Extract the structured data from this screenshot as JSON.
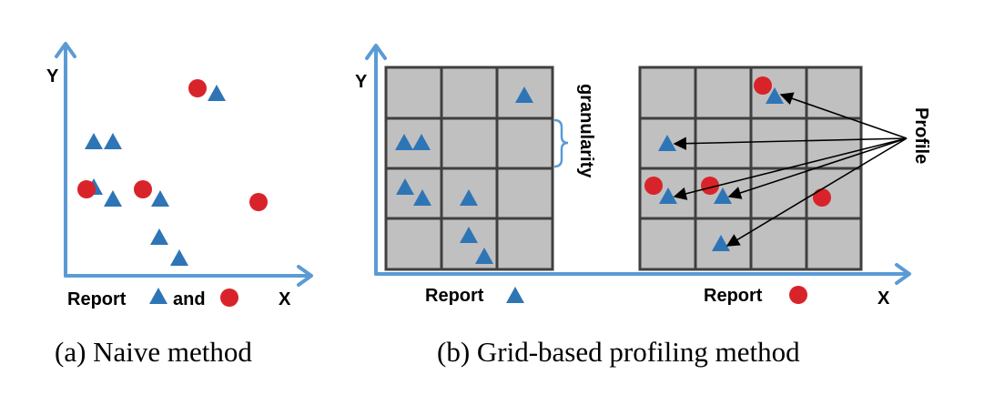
{
  "panel_a": {
    "y_label": "Y",
    "x_label": "X",
    "legend": {
      "report": "Report",
      "and": "and"
    },
    "caption": "(a) Naive method"
  },
  "panel_b": {
    "y_label": "Y",
    "x_label": "X",
    "left_grid": {
      "granularity_label": "granularity",
      "legend": "Report"
    },
    "right_grid": {
      "profile_label": "Profile",
      "legend": "Report"
    },
    "caption": "(b) Grid-based profiling method"
  },
  "colors": {
    "triangle": "#2e75b6",
    "circle": "#d9232a",
    "axis": "#5b9bd5",
    "cell_fill": "#c0c0c0",
    "cell_border": "#3f3f3f"
  },
  "icons": {
    "triangle_marker": "report-triangle-icon",
    "circle_marker": "report-circle-icon"
  }
}
